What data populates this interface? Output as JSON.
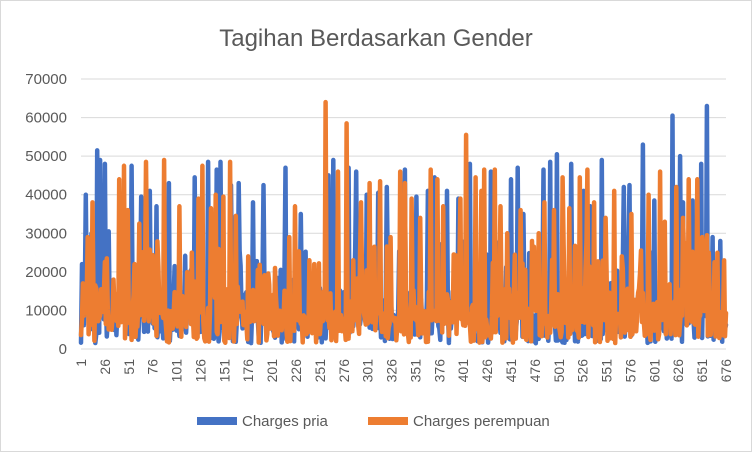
{
  "chart_data": {
    "type": "line",
    "title": "Tagihan Berdasarkan Gender",
    "xlabel": "",
    "ylabel": "",
    "ylim": [
      0,
      70000
    ],
    "yticks": [
      0,
      10000,
      20000,
      30000,
      40000,
      50000,
      60000,
      70000
    ],
    "xlim": [
      1,
      676
    ],
    "xticks": [
      1,
      26,
      51,
      76,
      101,
      126,
      151,
      176,
      201,
      226,
      251,
      276,
      301,
      326,
      351,
      376,
      401,
      426,
      451,
      476,
      501,
      526,
      551,
      576,
      601,
      626,
      651,
      676
    ],
    "grid": true,
    "legend": "bottom",
    "colors": {
      "pria": "#4472c4",
      "perempuan": "#ed7d31"
    },
    "series": [
      {
        "name": "Charges pria",
        "color": "#4472c4",
        "n": 676,
        "peaks": [
          [
            2,
            22000
          ],
          [
            6,
            40000
          ],
          [
            12,
            30000
          ],
          [
            18,
            51500
          ],
          [
            21,
            49000
          ],
          [
            26,
            48000
          ],
          [
            30,
            30500
          ],
          [
            43,
            39000
          ],
          [
            54,
            47500
          ],
          [
            64,
            39500
          ],
          [
            73,
            41000
          ],
          [
            80,
            37000
          ],
          [
            93,
            43000
          ],
          [
            99,
            21500
          ],
          [
            120,
            44500
          ],
          [
            134,
            48500
          ],
          [
            143,
            46500
          ],
          [
            147,
            48500
          ],
          [
            158,
            42500
          ],
          [
            166,
            43000
          ],
          [
            181,
            38000
          ],
          [
            192,
            42500
          ],
          [
            215,
            47000
          ],
          [
            231,
            35000
          ],
          [
            260,
            45000
          ],
          [
            265,
            49000
          ],
          [
            281,
            47000
          ],
          [
            289,
            46000
          ],
          [
            300,
            40000
          ],
          [
            312,
            40500
          ],
          [
            321,
            42000
          ],
          [
            340,
            46500
          ],
          [
            352,
            39500
          ],
          [
            364,
            41000
          ],
          [
            371,
            44500
          ],
          [
            384,
            41000
          ],
          [
            396,
            39000
          ],
          [
            408,
            48000
          ],
          [
            430,
            46000
          ],
          [
            451,
            44000
          ],
          [
            458,
            47000
          ],
          [
            464,
            35000
          ],
          [
            485,
            46500
          ],
          [
            492,
            48500
          ],
          [
            499,
            50500
          ],
          [
            514,
            48000
          ],
          [
            527,
            41000
          ],
          [
            534,
            37000
          ],
          [
            546,
            49000
          ],
          [
            569,
            42000
          ],
          [
            575,
            42500
          ],
          [
            589,
            53000
          ],
          [
            601,
            38500
          ],
          [
            620,
            60500
          ],
          [
            628,
            50000
          ],
          [
            631,
            38000
          ],
          [
            641,
            38500
          ],
          [
            650,
            48000
          ],
          [
            656,
            63000
          ],
          [
            662,
            29000
          ],
          [
            670,
            28000
          ]
        ]
      },
      {
        "name": "Charges perempuan",
        "color": "#ed7d31",
        "n": 676,
        "peaks": [
          [
            3,
            17000
          ],
          [
            8,
            29000
          ],
          [
            13,
            38000
          ],
          [
            16,
            16500
          ],
          [
            22,
            15500
          ],
          [
            28,
            23500
          ],
          [
            35,
            18000
          ],
          [
            41,
            44000
          ],
          [
            46,
            47500
          ],
          [
            50,
            36000
          ],
          [
            57,
            22000
          ],
          [
            62,
            32500
          ],
          [
            69,
            48500
          ],
          [
            75,
            20000
          ],
          [
            88,
            49000
          ],
          [
            104,
            37000
          ],
          [
            117,
            25000
          ],
          [
            124,
            39000
          ],
          [
            128,
            47500
          ],
          [
            137,
            36500
          ],
          [
            142,
            40000
          ],
          [
            150,
            39500
          ],
          [
            157,
            48500
          ],
          [
            163,
            34500
          ],
          [
            176,
            24000
          ],
          [
            186,
            20500
          ],
          [
            204,
            21000
          ],
          [
            219,
            29000
          ],
          [
            225,
            37000
          ],
          [
            240,
            23000
          ],
          [
            245,
            22000
          ],
          [
            257,
            64000
          ],
          [
            270,
            46000
          ],
          [
            279,
            58500
          ],
          [
            286,
            23000
          ],
          [
            294,
            38000
          ],
          [
            303,
            43000
          ],
          [
            314,
            43500
          ],
          [
            325,
            29000
          ],
          [
            335,
            46000
          ],
          [
            340,
            43000
          ],
          [
            347,
            39000
          ],
          [
            356,
            34000
          ],
          [
            367,
            46500
          ],
          [
            374,
            44000
          ],
          [
            380,
            37000
          ],
          [
            391,
            24500
          ],
          [
            398,
            39000
          ],
          [
            404,
            55500
          ],
          [
            414,
            44500
          ],
          [
            420,
            41000
          ],
          [
            423,
            46500
          ],
          [
            434,
            46500
          ],
          [
            440,
            37000
          ],
          [
            447,
            30000
          ],
          [
            461,
            36000
          ],
          [
            473,
            28000
          ],
          [
            480,
            30000
          ],
          [
            486,
            38000
          ],
          [
            496,
            36000
          ],
          [
            505,
            44500
          ],
          [
            512,
            36500
          ],
          [
            523,
            44500
          ],
          [
            531,
            46500
          ],
          [
            538,
            38000
          ],
          [
            550,
            34000
          ],
          [
            559,
            41000
          ],
          [
            567,
            24000
          ],
          [
            577,
            35000
          ],
          [
            586,
            19500
          ],
          [
            595,
            40000
          ],
          [
            607,
            46000
          ],
          [
            612,
            33000
          ],
          [
            624,
            42000
          ],
          [
            631,
            34000
          ],
          [
            637,
            44000
          ],
          [
            646,
            44000
          ],
          [
            651,
            29000
          ],
          [
            656,
            29500
          ],
          [
            664,
            22500
          ]
        ]
      }
    ]
  }
}
